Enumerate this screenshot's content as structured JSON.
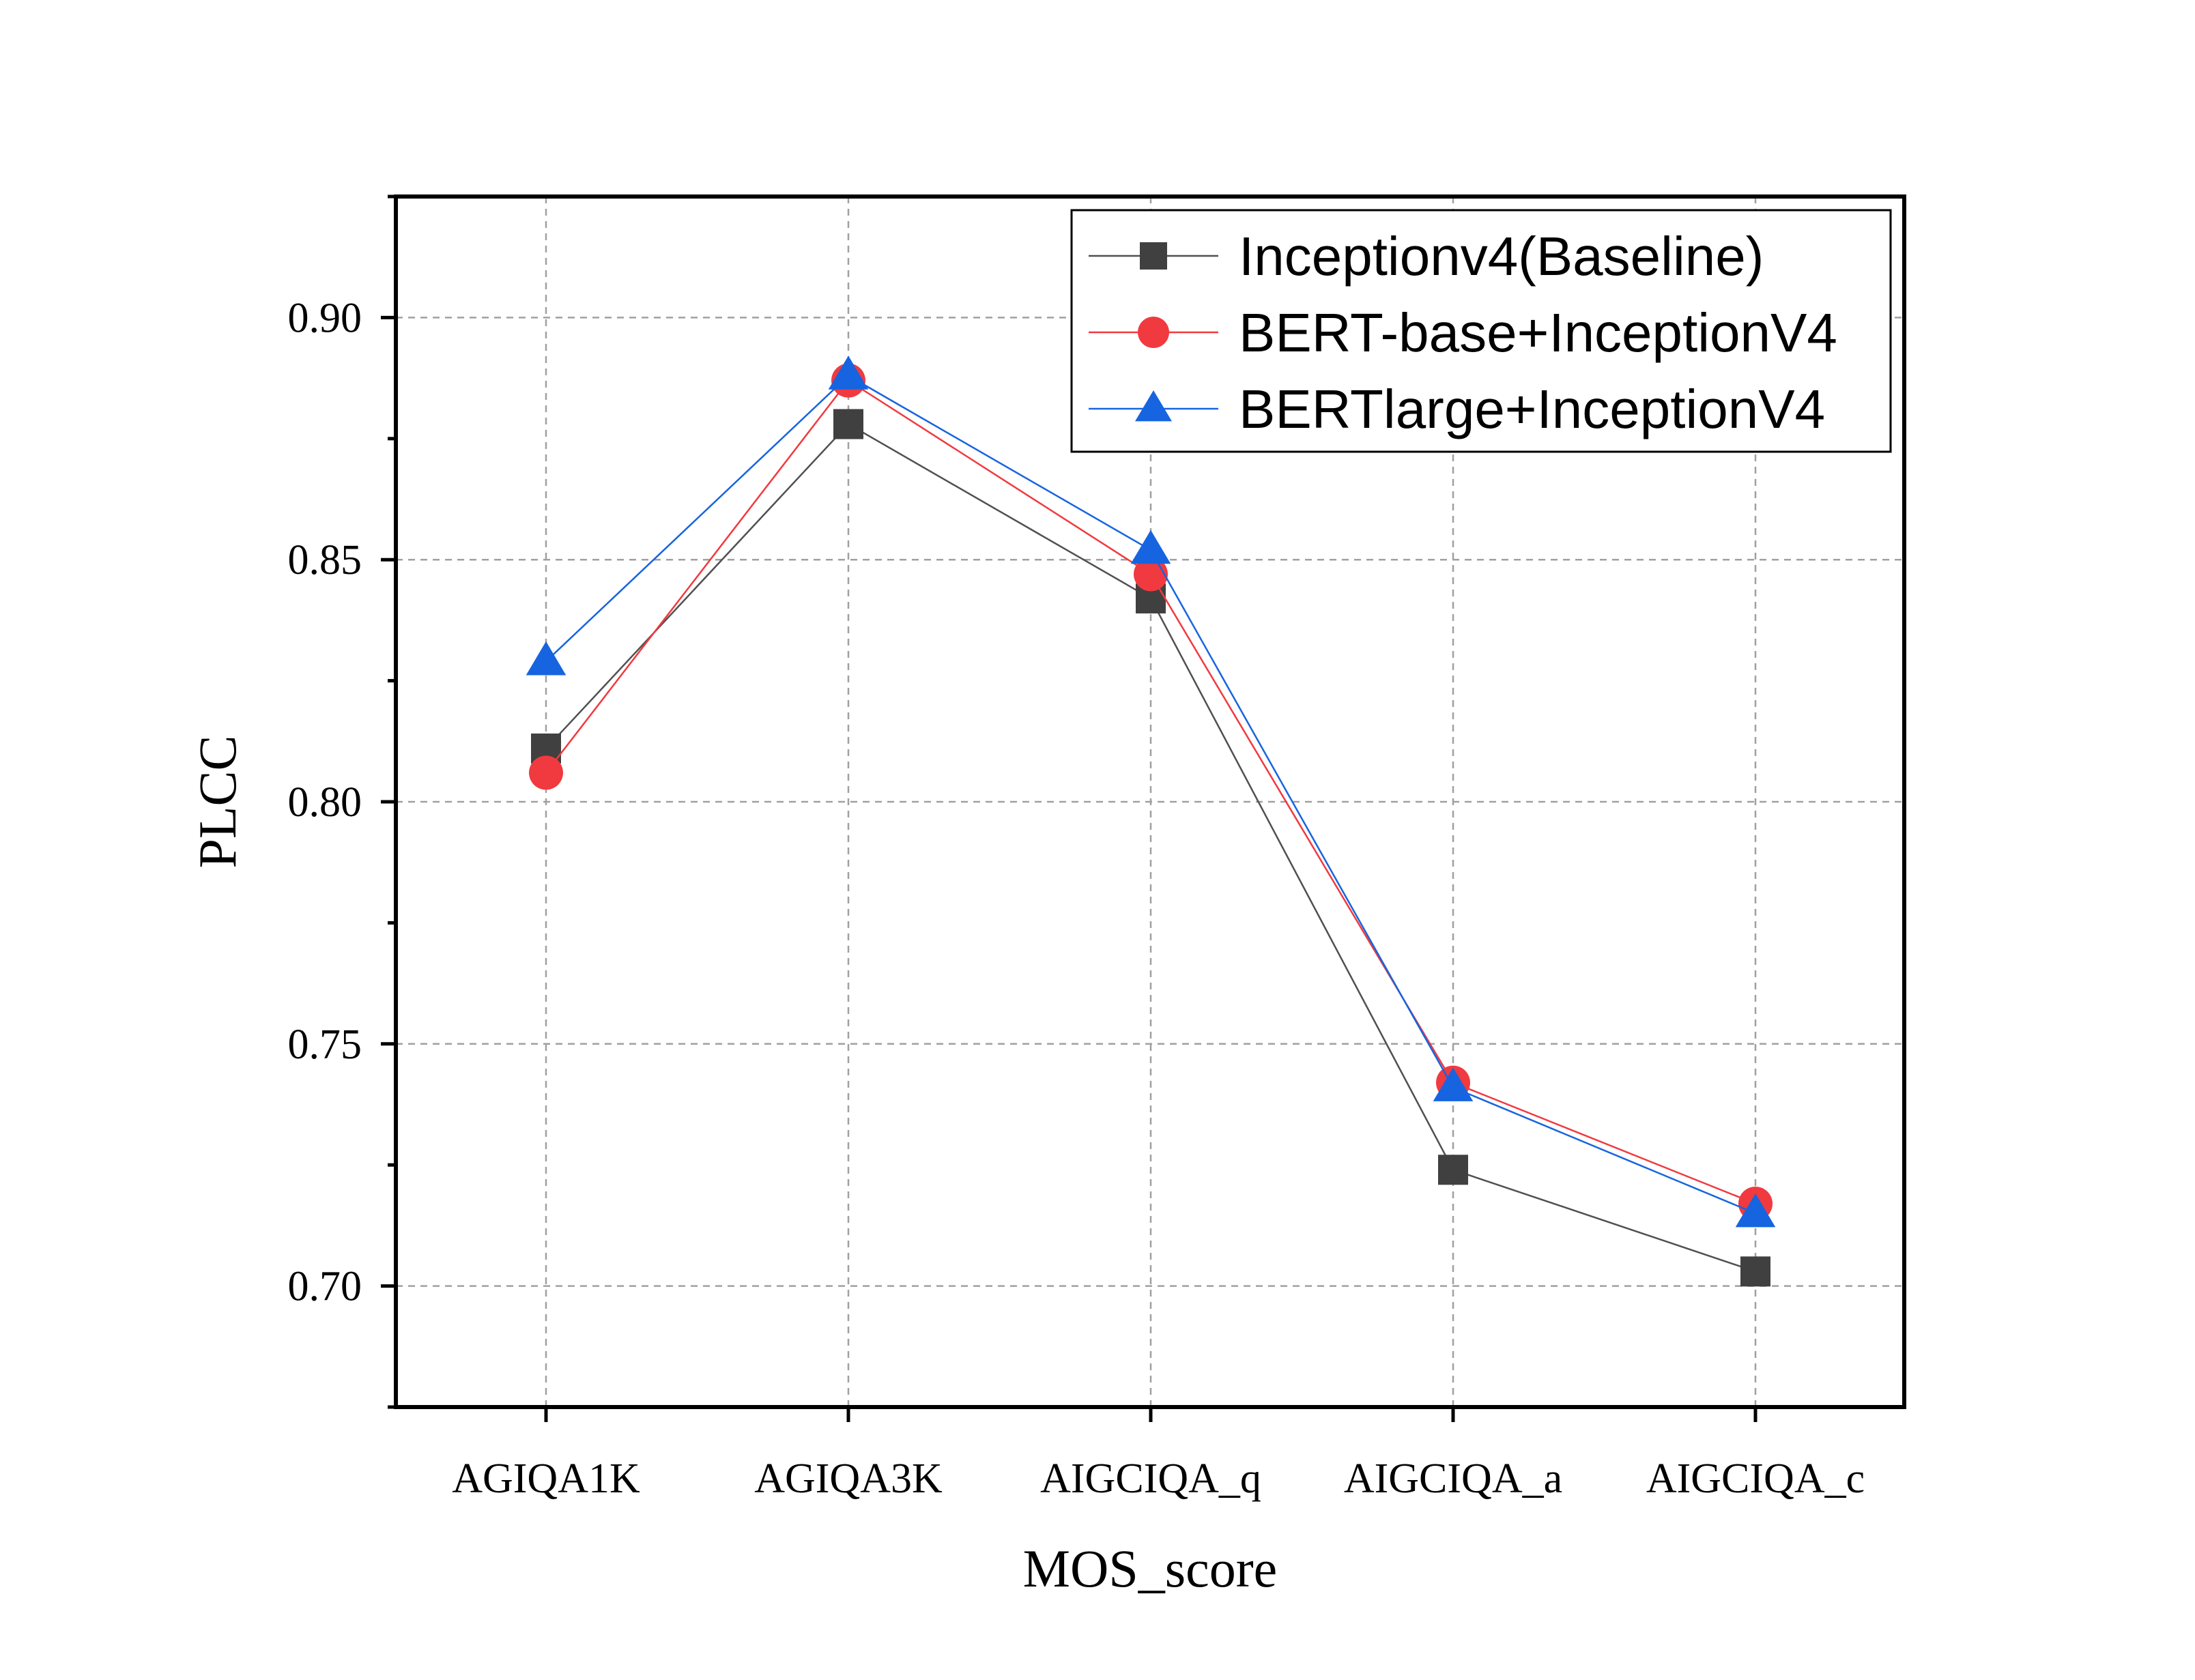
{
  "chart_data": {
    "type": "line",
    "title": "",
    "xlabel": "MOS_score",
    "ylabel": "PLCC",
    "categories": [
      "AGIQA1K",
      "AGIQA3K",
      "AIGCIQA_q",
      "AIGCIQA_a",
      "AIGCIQA_c"
    ],
    "ylim": [
      0.675,
      0.925
    ],
    "yticks": [
      "0.70",
      "0.75",
      "0.80",
      "0.85",
      "0.90"
    ],
    "grid": true,
    "legend_position": "top-right",
    "series": [
      {
        "name": "Inceptionv4(Baseline)",
        "marker": "square",
        "color": "#404040",
        "line_color": "#505050",
        "values": [
          0.811,
          0.878,
          0.842,
          0.724,
          0.703
        ]
      },
      {
        "name": "BERT-base+InceptionV4",
        "marker": "circle",
        "color": "#f03a3f",
        "line_color": "#f03a3f",
        "values": [
          0.806,
          0.887,
          0.847,
          0.742,
          0.717
        ]
      },
      {
        "name": "BERTlarge+InceptionV4",
        "marker": "triangle",
        "color": "#1764e0",
        "line_color": "#1764e0",
        "values": [
          0.829,
          0.888,
          0.852,
          0.741,
          0.715
        ]
      }
    ]
  }
}
